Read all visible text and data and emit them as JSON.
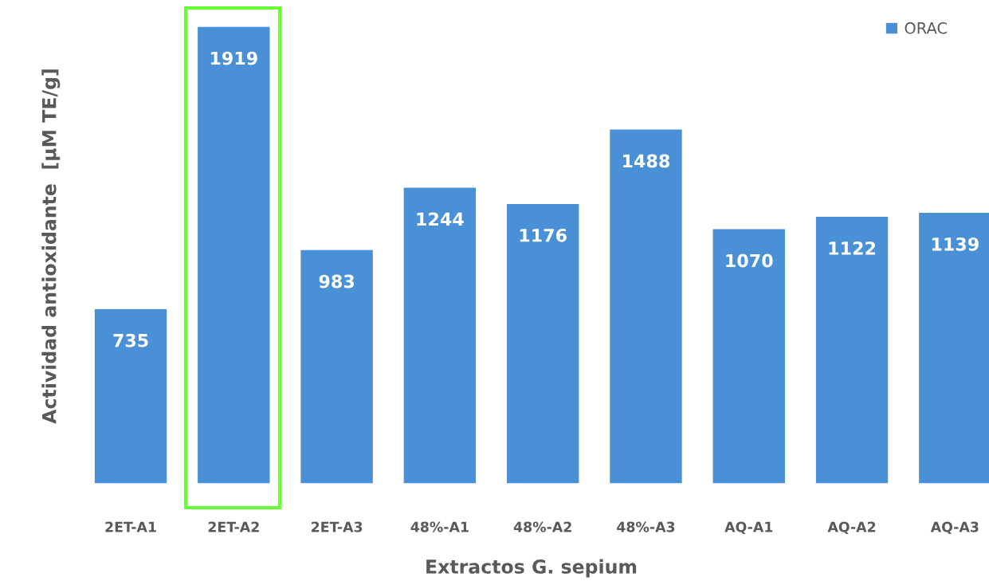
{
  "chart_data": {
    "type": "bar",
    "xlabel": "Extractos G. sepium",
    "ylabel": "Actividad antioxidante  [µM TE/g]",
    "categories": [
      "2ET-A1",
      "2ET-A2",
      "2ET-A3",
      "48%-A1",
      "48%-A2",
      "48%-A3",
      "AQ-A1",
      "AQ-A2",
      "AQ-A3"
    ],
    "series": [
      {
        "name": "ORAC",
        "color": "#4a90d6",
        "values": [
          735,
          1919,
          983,
          1244,
          1176,
          1488,
          1070,
          1122,
          1139
        ]
      }
    ],
    "data_labels": true,
    "legend": "top right",
    "grid": false,
    "tick_labels": "x"
  }
}
